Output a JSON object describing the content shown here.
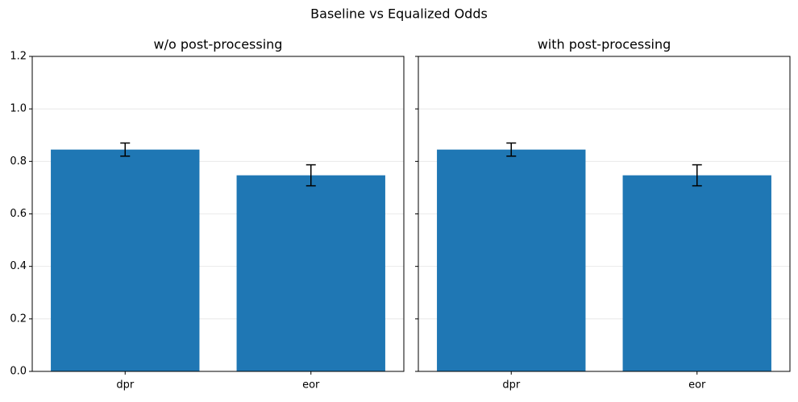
{
  "title": "Baseline vs Equalized Odds",
  "chart_data": [
    {
      "type": "bar",
      "title": "w/o post-processing",
      "categories": [
        "dpr",
        "eor"
      ],
      "values": [
        0.845,
        0.747
      ],
      "errors": [
        0.025,
        0.04
      ],
      "color": "#1f77b4",
      "ylim": [
        0,
        1.2
      ],
      "yticks": [
        {
          "value": 0,
          "label": "0.0"
        },
        {
          "value": 0.2,
          "label": "0.2"
        },
        {
          "value": 0.4,
          "label": "0.4"
        },
        {
          "value": 0.6,
          "label": "0.6"
        },
        {
          "value": 0.8,
          "label": "0.8"
        },
        {
          "value": 1.0,
          "label": "1.0"
        },
        {
          "value": 1.2,
          "label": "1.2"
        }
      ],
      "grid": true
    },
    {
      "type": "bar",
      "title": "with post-processing",
      "categories": [
        "dpr",
        "eor"
      ],
      "values": [
        0.845,
        0.747
      ],
      "errors": [
        0.025,
        0.04
      ],
      "color": "#1f77b4",
      "ylim": [
        0,
        1.2
      ],
      "yticks": [
        0,
        0.2,
        0.4,
        0.6,
        0.8,
        1.0,
        1.2
      ],
      "grid": true
    }
  ]
}
